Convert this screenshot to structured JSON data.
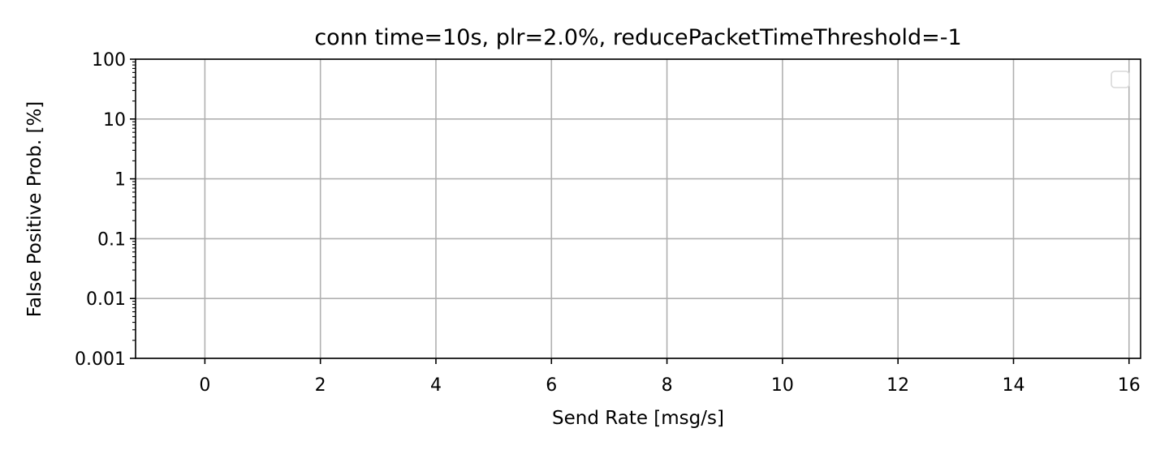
{
  "chart_data": {
    "type": "line",
    "title": "conn time=10s, plr=2.0%, reducePacketTimeThreshold=-1",
    "xlabel": "Send Rate [msg/s]",
    "ylabel": "False Positive Prob. [%]",
    "xlim": [
      -1.2,
      16.2
    ],
    "ylim": [
      0.001,
      100
    ],
    "yscale": "log",
    "x_ticks": [
      0,
      2,
      4,
      6,
      8,
      10,
      12,
      14,
      16
    ],
    "x_tick_labels": [
      "0",
      "2",
      "4",
      "6",
      "8",
      "10",
      "12",
      "14",
      "16"
    ],
    "y_ticks": [
      0.001,
      0.01,
      0.1,
      1,
      10,
      100
    ],
    "y_tick_labels": [
      "0.001",
      "0.01",
      "0.1",
      "1",
      "10",
      "100"
    ],
    "grid": true,
    "legend": {
      "placement": "top-right",
      "entries": []
    },
    "series": []
  }
}
